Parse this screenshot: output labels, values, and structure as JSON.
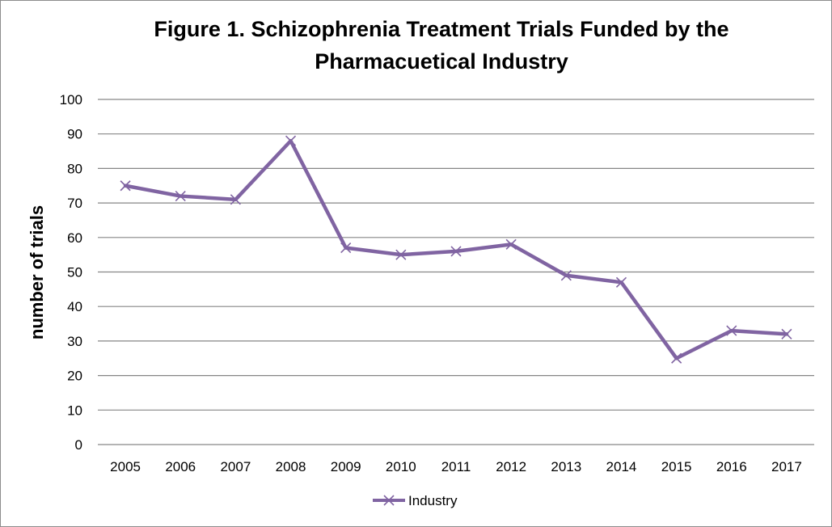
{
  "chart_data": {
    "type": "line",
    "title_lines": [
      "Figure 1. Schizophrenia Treatment Trials Funded by the",
      "Pharmacuetical Industry"
    ],
    "xlabel": "",
    "ylabel": "number of trials",
    "categories": [
      "2005",
      "2006",
      "2007",
      "2008",
      "2009",
      "2010",
      "2011",
      "2012",
      "2013",
      "2014",
      "2015",
      "2016",
      "2017"
    ],
    "ylim": [
      0,
      100
    ],
    "yticks": [
      "0",
      "10",
      "20",
      "30",
      "40",
      "50",
      "60",
      "70",
      "80",
      "90",
      "100"
    ],
    "grid": true,
    "legend_position": "bottom",
    "series": [
      {
        "name": "Industry",
        "color": "#8064a2",
        "marker": "x",
        "values": [
          75,
          72,
          71,
          88,
          57,
          55,
          56,
          58,
          49,
          47,
          25,
          33,
          32
        ]
      }
    ]
  }
}
